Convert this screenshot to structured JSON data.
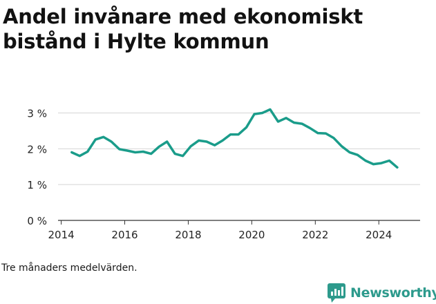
{
  "header": {
    "title_line1": "Andel invånare med ekonomiskt",
    "title_line2": "bistånd i Hylte kommun"
  },
  "footnote": "Tre månaders medelvärden.",
  "brand": {
    "name": "Newsworthy",
    "icon": "newsworthy-logo-icon",
    "color": "#2d9a8c"
  },
  "colors": {
    "series": "#1a9c8a",
    "grid": "#d4d4d4",
    "axis": "#333333",
    "text": "#222222"
  },
  "chart_data": {
    "type": "line",
    "title": "Andel invånare med ekonomiskt bistånd i Hylte kommun",
    "xlabel": "",
    "ylabel": "",
    "x_ticks": [
      2014,
      2016,
      2018,
      2020,
      2022,
      2024
    ],
    "y_ticks": [
      0,
      1,
      2,
      3
    ],
    "y_tick_labels": [
      "0 %",
      "1 %",
      "2 %",
      "3 %"
    ],
    "x_tick_labels": [
      "2014",
      "2016",
      "2018",
      "2020",
      "2022",
      "2024"
    ],
    "xlim": [
      2013.9,
      2025.3
    ],
    "ylim": [
      0,
      3.3
    ],
    "grid": true,
    "series": [
      {
        "name": "Andel invånare med ekonomiskt bistånd",
        "x": [
          2014.33,
          2014.58,
          2014.83,
          2015.08,
          2015.33,
          2015.58,
          2015.83,
          2016.08,
          2016.33,
          2016.58,
          2016.83,
          2017.08,
          2017.33,
          2017.58,
          2017.83,
          2018.08,
          2018.33,
          2018.58,
          2018.83,
          2019.08,
          2019.33,
          2019.58,
          2019.83,
          2020.08,
          2020.33,
          2020.58,
          2020.83,
          2021.08,
          2021.33,
          2021.58,
          2021.83,
          2022.08,
          2022.33,
          2022.58,
          2022.83,
          2023.08,
          2023.33,
          2023.58,
          2023.83,
          2024.08,
          2024.33,
          2024.58
        ],
        "values": [
          1.9,
          1.8,
          1.92,
          2.26,
          2.33,
          2.2,
          1.99,
          1.95,
          1.9,
          1.92,
          1.86,
          2.06,
          2.2,
          1.86,
          1.8,
          2.07,
          2.23,
          2.2,
          2.1,
          2.23,
          2.4,
          2.4,
          2.6,
          2.97,
          3.0,
          3.1,
          2.76,
          2.86,
          2.73,
          2.7,
          2.58,
          2.44,
          2.43,
          2.3,
          2.07,
          1.9,
          1.83,
          1.67,
          1.57,
          1.6,
          1.67,
          1.48
        ]
      }
    ]
  }
}
